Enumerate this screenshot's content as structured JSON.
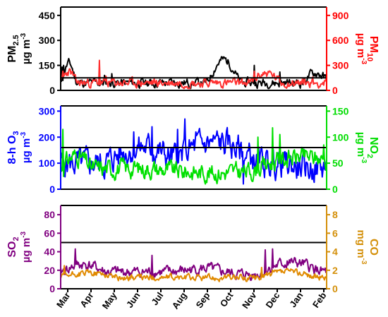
{
  "months": [
    "Mar",
    "Apr",
    "May",
    "Jun",
    "Jul",
    "Aug",
    "Sep",
    "Oct",
    "Nov",
    "Dec",
    "Jan",
    "Feb"
  ],
  "chart_data": [
    {
      "type": "line",
      "id": "pm",
      "ylim_left": [
        0,
        500
      ],
      "left_ticks": [
        0,
        150,
        300,
        450
      ],
      "ylim_right": [
        0,
        1000
      ],
      "right_ticks": [
        0,
        300,
        600,
        900
      ],
      "ylabel_left": {
        "l1": "PM",
        "sub": "2.5",
        "l2": "µg m",
        "sup": "-3"
      },
      "ylabel_right": {
        "l1": "PM",
        "sub": "10",
        "l2": "µg m",
        "sup": "-3"
      },
      "reference_line": {
        "value": 75,
        "axis": "left"
      },
      "series": [
        {
          "key": "pm25",
          "axis": "left",
          "color": "#000000",
          "points": 365,
          "base": 45,
          "amp": 28,
          "seed": 11,
          "bumps": [
            [
              0,
              10,
              120
            ],
            [
              200,
              22,
              140
            ],
            [
              330,
              18,
              60
            ]
          ],
          "spikes": [
            [
              2,
              140
            ],
            [
              4,
              150
            ],
            [
              60,
              90
            ],
            [
              70,
              100
            ],
            [
              265,
              150
            ],
            [
              300,
              110
            ],
            [
              345,
              100
            ]
          ]
        },
        {
          "key": "pm10",
          "axis": "right",
          "color": "#ff3030",
          "points": 365,
          "base": 90,
          "amp": 55,
          "seed": 23,
          "bumps": [
            [
              0,
              10,
              140
            ],
            [
              260,
              20,
              120
            ]
          ],
          "spikes": [
            [
              53,
              360
            ],
            [
              3,
              230
            ],
            [
              62,
              170
            ],
            [
              265,
              230
            ],
            [
              345,
              160
            ]
          ]
        }
      ],
      "axis_colors": {
        "left": "#000000",
        "right": "#ff0000"
      }
    },
    {
      "type": "line",
      "id": "o3no2",
      "ylim_left": [
        0,
        320
      ],
      "left_ticks": [
        0,
        100,
        200,
        300
      ],
      "ylim_right": [
        0,
        160
      ],
      "right_ticks": [
        0,
        50,
        100,
        150
      ],
      "ylabel_left": {
        "l1": "8-h O",
        "sub": "3",
        "l2": "µg m",
        "sup": "-3"
      },
      "ylabel_right": {
        "l1": "NO",
        "sub": "2",
        "l2": "µg m",
        "sup": "-3"
      },
      "reference_line": {
        "value": 160,
        "axis": "left"
      },
      "series": [
        {
          "key": "o3",
          "axis": "left",
          "color": "#0000ff",
          "points": 365,
          "base": 100,
          "amp": 55,
          "seed": 5,
          "bumps": [
            [
              60,
              50,
              60
            ],
            [
              150,
              60,
              80
            ],
            [
              300,
              40,
              -20
            ]
          ],
          "spikes": [
            [
              100,
              220
            ],
            [
              125,
              240
            ],
            [
              170,
              270
            ],
            [
              160,
              230
            ],
            [
              185,
              220
            ],
            [
              210,
              200
            ],
            [
              250,
              20
            ]
          ]
        },
        {
          "key": "no2",
          "axis": "right",
          "color": "#00e000",
          "points": 365,
          "base": 40,
          "amp": 18,
          "seed": 31,
          "bumps": [
            [
              0,
              20,
              25
            ],
            [
              260,
              70,
              22
            ],
            [
              120,
              90,
              -8
            ]
          ],
          "spikes": [
            [
              3,
              115
            ],
            [
              270,
              100
            ],
            [
              290,
              118
            ],
            [
              300,
              105
            ],
            [
              360,
              85
            ]
          ]
        }
      ],
      "axis_colors": {
        "left": "#0000ff",
        "right": "#00dd00"
      }
    },
    {
      "type": "line",
      "id": "so2co",
      "ylim_left": [
        0,
        90
      ],
      "left_ticks": [
        0,
        20,
        40,
        60,
        80
      ],
      "ylim_right": [
        0,
        9
      ],
      "right_ticks": [
        0,
        2,
        4,
        6,
        8
      ],
      "ylabel_left": {
        "l1": "SO",
        "sub": "2",
        "l2": "µg m",
        "sup": "-3"
      },
      "ylabel_right": {
        "l1": "CO",
        "sub": "",
        "l2": "mg m",
        "sup": "-3"
      },
      "reference_line": {
        "value": 50,
        "axis": "left"
      },
      "series": [
        {
          "key": "so2",
          "axis": "left",
          "color": "#800080",
          "points": 365,
          "base": 18,
          "amp": 6,
          "seed": 41,
          "bumps": [
            [
              0,
              30,
              8
            ],
            [
              150,
              60,
              4
            ],
            [
              200,
              40,
              -5
            ],
            [
              275,
              40,
              10
            ]
          ],
          "spikes": [
            [
              20,
              43
            ],
            [
              125,
              36
            ],
            [
              280,
              42
            ],
            [
              290,
              43
            ],
            [
              310,
              30
            ]
          ]
        },
        {
          "key": "co",
          "axis": "right",
          "color": "#e08a00",
          "points": 365,
          "base": 1.2,
          "amp": 0.35,
          "seed": 57,
          "bumps": [
            [
              0,
              40,
              0.5
            ],
            [
              270,
              40,
              0.6
            ]
          ],
          "spikes": [
            [
              5,
              2.5
            ],
            [
              275,
              2.3
            ],
            [
              290,
              2.0
            ]
          ]
        }
      ],
      "axis_colors": {
        "left": "#800080",
        "right": "#d4900a"
      }
    }
  ]
}
